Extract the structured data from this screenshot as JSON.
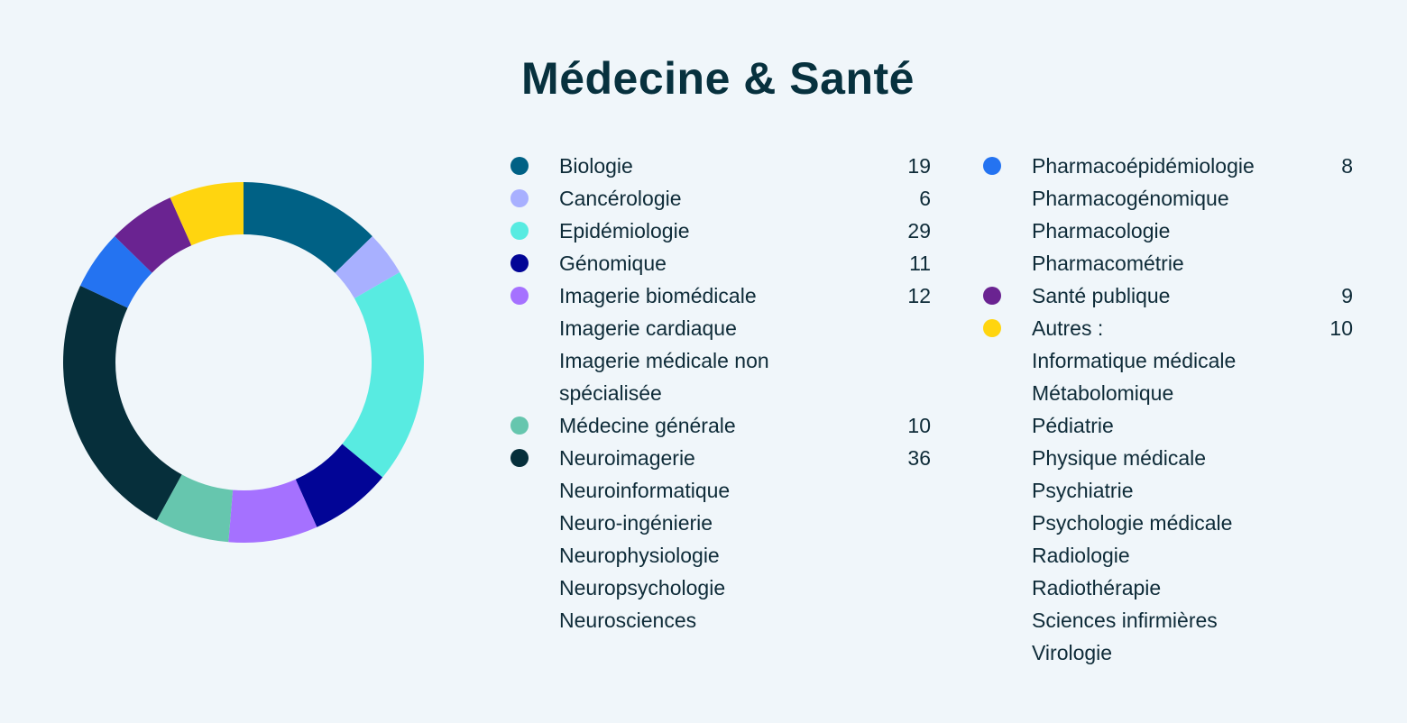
{
  "chart_data": {
    "type": "pie",
    "title": "Médecine & Santé",
    "legend_position": "right",
    "series": [
      {
        "name": "Biologie",
        "value": 19,
        "color": "#006185",
        "sub": []
      },
      {
        "name": "Cancérologie",
        "value": 6,
        "color": "#a8b0ff",
        "sub": []
      },
      {
        "name": "Epidémiologie",
        "value": 29,
        "color": "#58ebe1",
        "sub": []
      },
      {
        "name": "Génomique",
        "value": 11,
        "color": "#020596",
        "sub": []
      },
      {
        "name": "Imagerie biomédicale",
        "value": 12,
        "color": "#a571ff",
        "sub": [
          "Imagerie cardiaque",
          "Imagerie médicale non spécialisée"
        ]
      },
      {
        "name": "Médecine générale",
        "value": 10,
        "color": "#66c6ae",
        "sub": []
      },
      {
        "name": "Neuroimagerie",
        "value": 36,
        "color": "#062f3b",
        "sub": [
          "Neuroinformatique",
          "Neuro-ingénierie",
          "Neurophysiologie",
          "Neuropsychologie",
          "Neurosciences"
        ]
      },
      {
        "name": "Pharmacoépidémiologie",
        "value": 8,
        "color": "#2473f1",
        "sub": [
          "Pharmacogénomique",
          "Pharmacologie",
          "Pharmacométrie"
        ]
      },
      {
        "name": "Santé publique",
        "value": 9,
        "color": "#6a2391",
        "sub": []
      },
      {
        "name": "Autres :",
        "value": 10,
        "color": "#ffd50f",
        "sub": [
          "Informatique médicale",
          "Métabolomique",
          "Pédiatrie",
          "Physique médicale",
          "Psychiatrie",
          "Psychologie médicale",
          "Radiologie",
          "Radiothérapie",
          "Sciences infirmières",
          "Virologie"
        ]
      }
    ]
  }
}
